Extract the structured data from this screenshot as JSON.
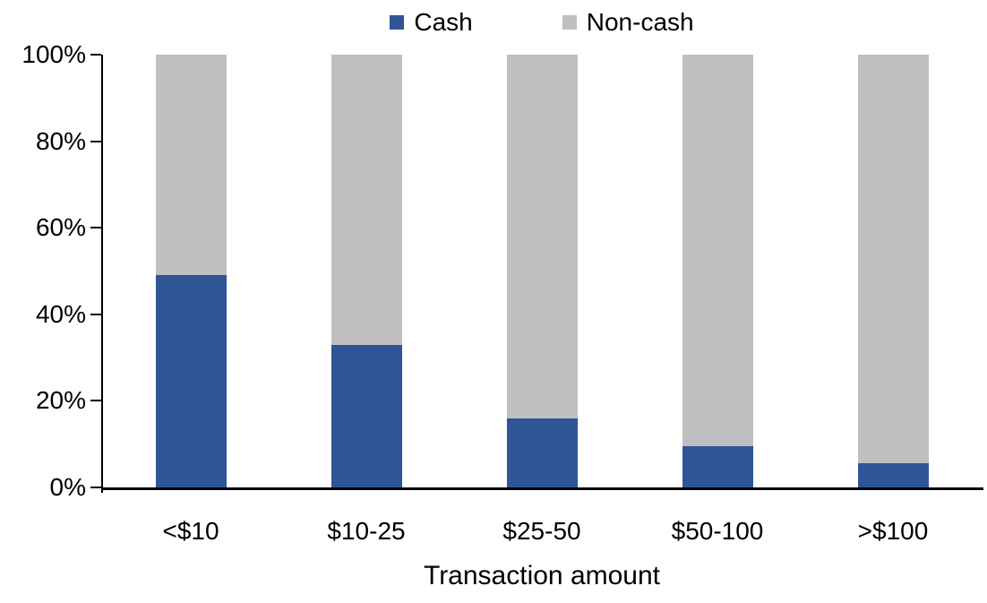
{
  "chart_data": {
    "type": "bar",
    "stacked": true,
    "percent_stacked": true,
    "title": "",
    "xlabel": "Transaction amount",
    "ylabel": "",
    "categories": [
      "<$10",
      "$10-25",
      "$25-50",
      "$50-100",
      ">$100"
    ],
    "series": [
      {
        "name": "Cash",
        "color": "#2F5597",
        "values": [
          49,
          33,
          16,
          9.5,
          5.5
        ]
      },
      {
        "name": "Non-cash",
        "color": "#BFBFBF",
        "values": [
          51,
          67,
          84,
          90.5,
          94.5
        ]
      }
    ],
    "ylim": [
      0,
      100
    ],
    "yticks": [
      {
        "value": 0,
        "label": "0%"
      },
      {
        "value": 20,
        "label": "20%"
      },
      {
        "value": 40,
        "label": "40%"
      },
      {
        "value": 60,
        "label": "60%"
      },
      {
        "value": 80,
        "label": "80%"
      },
      {
        "value": 100,
        "label": "100%"
      }
    ],
    "grid": false,
    "legend_position": "top"
  },
  "colors": {
    "axis": "#000000",
    "text": "#000000",
    "background": "#FFFFFF"
  }
}
